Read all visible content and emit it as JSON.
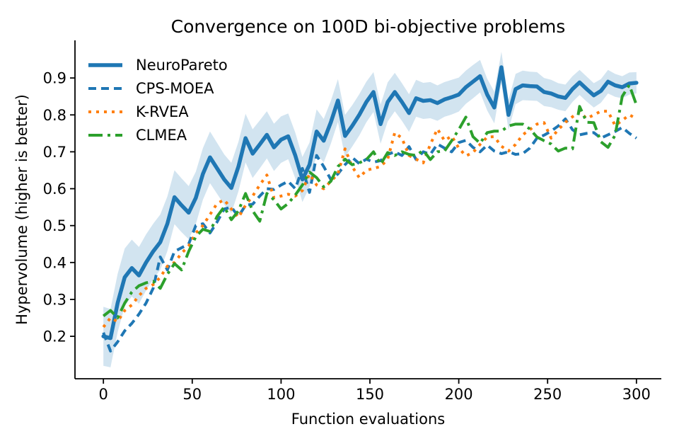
{
  "figure": {
    "background": "#ffffff"
  },
  "chart_data": {
    "type": "line",
    "title": "Convergence on 100D bi-objective problems",
    "xlabel": "Function evaluations",
    "ylabel": "Hypervolume (higher is better)",
    "xlim": [
      -16,
      314
    ],
    "ylim": [
      0.085,
      1.002
    ],
    "xticks": [
      0,
      50,
      100,
      150,
      200,
      250,
      300
    ],
    "xtick_labels": [
      "0",
      "50",
      "100",
      "150",
      "200",
      "250",
      "300"
    ],
    "yticks": [
      0.2,
      0.3,
      0.4,
      0.5,
      0.6,
      0.7,
      0.8,
      0.9
    ],
    "ytick_labels": [
      "0.2",
      "0.3",
      "0.4",
      "0.5",
      "0.6",
      "0.7",
      "0.8",
      "0.9"
    ],
    "grid": false,
    "legend_position": "upper left",
    "axis_color": "#000000",
    "text_color": "#000000",
    "x": [
      0,
      4,
      8,
      12,
      16,
      20,
      24,
      28,
      32,
      36,
      40,
      44,
      48,
      52,
      56,
      60,
      64,
      68,
      72,
      76,
      80,
      84,
      88,
      92,
      96,
      100,
      104,
      108,
      112,
      116,
      120,
      124,
      128,
      132,
      136,
      140,
      144,
      148,
      152,
      156,
      160,
      164,
      168,
      172,
      176,
      180,
      184,
      188,
      192,
      196,
      200,
      204,
      208,
      212,
      216,
      220,
      224,
      228,
      232,
      236,
      240,
      244,
      248,
      252,
      256,
      260,
      264,
      268,
      272,
      276,
      280,
      284,
      288,
      292,
      296,
      300
    ],
    "series": [
      {
        "name": "NeuroPareto",
        "color": "#1f77b4",
        "style": "solid",
        "linewidth": 5.5,
        "values": [
          0.2,
          0.195,
          0.29,
          0.36,
          0.385,
          0.365,
          0.4,
          0.43,
          0.455,
          0.505,
          0.577,
          0.555,
          0.535,
          0.575,
          0.64,
          0.685,
          0.655,
          0.625,
          0.602,
          0.66,
          0.737,
          0.695,
          0.72,
          0.746,
          0.712,
          0.733,
          0.742,
          0.69,
          0.625,
          0.665,
          0.755,
          0.73,
          0.78,
          0.839,
          0.743,
          0.77,
          0.8,
          0.835,
          0.862,
          0.775,
          0.835,
          0.862,
          0.835,
          0.805,
          0.845,
          0.838,
          0.84,
          0.832,
          0.842,
          0.848,
          0.855,
          0.875,
          0.89,
          0.905,
          0.855,
          0.82,
          0.929,
          0.8,
          0.87,
          0.88,
          0.878,
          0.877,
          0.862,
          0.858,
          0.85,
          0.846,
          0.87,
          0.888,
          0.87,
          0.853,
          0.865,
          0.89,
          0.88,
          0.875,
          0.885,
          0.887
        ],
        "band": {
          "fill": "#1f77b4",
          "opacity": 0.2,
          "delta": [
            0.08,
            0.079,
            0.079,
            0.078,
            0.077,
            0.077,
            0.076,
            0.075,
            0.075,
            0.074,
            0.073,
            0.073,
            0.072,
            0.071,
            0.07,
            0.07,
            0.069,
            0.068,
            0.068,
            0.067,
            0.066,
            0.066,
            0.065,
            0.064,
            0.064,
            0.063,
            0.062,
            0.062,
            0.061,
            0.06,
            0.06,
            0.059,
            0.058,
            0.058,
            0.057,
            0.056,
            0.056,
            0.055,
            0.054,
            0.053,
            0.053,
            0.052,
            0.051,
            0.051,
            0.05,
            0.049,
            0.049,
            0.048,
            0.047,
            0.047,
            0.046,
            0.045,
            0.045,
            0.044,
            0.043,
            0.043,
            0.042,
            0.041,
            0.041,
            0.04,
            0.039,
            0.039,
            0.038,
            0.037,
            0.036,
            0.036,
            0.035,
            0.034,
            0.034,
            0.033,
            0.032,
            0.032,
            0.031,
            0.03,
            0.03,
            0.029
          ]
        }
      },
      {
        "name": "CPS-MOEA",
        "color": "#1f77b4",
        "style": "dashed",
        "linewidth": 4,
        "values": [
          0.21,
          0.16,
          0.185,
          0.215,
          0.235,
          0.26,
          0.29,
          0.33,
          0.415,
          0.38,
          0.43,
          0.44,
          0.45,
          0.5,
          0.505,
          0.48,
          0.51,
          0.545,
          0.55,
          0.525,
          0.555,
          0.558,
          0.58,
          0.6,
          0.598,
          0.61,
          0.62,
          0.6,
          0.655,
          0.59,
          0.69,
          0.66,
          0.625,
          0.64,
          0.665,
          0.685,
          0.668,
          0.68,
          0.672,
          0.676,
          0.693,
          0.7,
          0.69,
          0.714,
          0.679,
          0.7,
          0.693,
          0.721,
          0.71,
          0.7,
          0.725,
          0.731,
          0.712,
          0.7,
          0.718,
          0.702,
          0.695,
          0.7,
          0.693,
          0.695,
          0.71,
          0.737,
          0.745,
          0.756,
          0.77,
          0.789,
          0.76,
          0.746,
          0.75,
          0.752,
          0.737,
          0.746,
          0.755,
          0.766,
          0.75,
          0.737
        ]
      },
      {
        "name": "K-RVEA",
        "color": "#ff7f0e",
        "style": "dotted",
        "linewidth": 4,
        "values": [
          0.225,
          0.25,
          0.24,
          0.27,
          0.285,
          0.31,
          0.33,
          0.34,
          0.36,
          0.39,
          0.4,
          0.425,
          0.445,
          0.48,
          0.5,
          0.53,
          0.56,
          0.57,
          0.545,
          0.522,
          0.555,
          0.58,
          0.61,
          0.637,
          0.575,
          0.58,
          0.585,
          0.58,
          0.595,
          0.64,
          0.61,
          0.6,
          0.62,
          0.64,
          0.708,
          0.66,
          0.63,
          0.65,
          0.655,
          0.66,
          0.68,
          0.752,
          0.737,
          0.69,
          0.68,
          0.67,
          0.72,
          0.762,
          0.73,
          0.743,
          0.71,
          0.689,
          0.698,
          0.72,
          0.74,
          0.741,
          0.715,
          0.702,
          0.72,
          0.746,
          0.76,
          0.775,
          0.779,
          0.737,
          0.76,
          0.78,
          0.795,
          0.808,
          0.79,
          0.8,
          0.81,
          0.81,
          0.771,
          0.785,
          0.8,
          0.79
        ]
      },
      {
        "name": "CLMEA",
        "color": "#2ca02c",
        "style": "dashdot",
        "linewidth": 4,
        "values": [
          0.255,
          0.27,
          0.25,
          0.29,
          0.32,
          0.337,
          0.345,
          0.349,
          0.33,
          0.368,
          0.397,
          0.38,
          0.43,
          0.47,
          0.49,
          0.484,
          0.525,
          0.551,
          0.516,
          0.54,
          0.587,
          0.54,
          0.512,
          0.587,
          0.57,
          0.545,
          0.56,
          0.583,
          0.61,
          0.645,
          0.63,
          0.605,
          0.62,
          0.66,
          0.68,
          0.665,
          0.67,
          0.679,
          0.7,
          0.666,
          0.698,
          0.69,
          0.7,
          0.693,
          0.69,
          0.704,
          0.679,
          0.7,
          0.702,
          0.73,
          0.76,
          0.794,
          0.741,
          0.723,
          0.752,
          0.756,
          0.756,
          0.77,
          0.775,
          0.775,
          0.762,
          0.74,
          0.73,
          0.721,
          0.702,
          0.71,
          0.708,
          0.823,
          0.78,
          0.779,
          0.727,
          0.712,
          0.745,
          0.85,
          0.881,
          0.827
        ]
      }
    ]
  }
}
